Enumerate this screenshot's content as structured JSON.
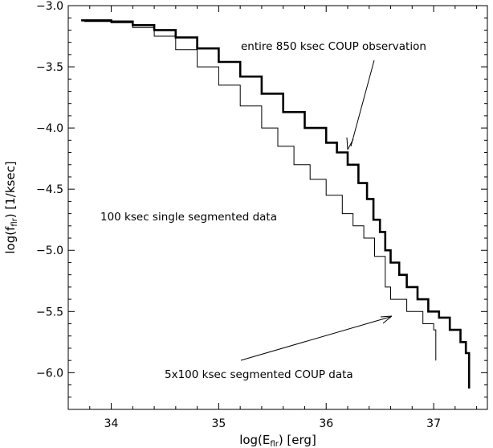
{
  "chart_data": {
    "type": "line",
    "title": "",
    "xlabel": "log(E_flr) [erg]",
    "ylabel": "log(f_flr) [1/ksec]",
    "xlim": [
      33.6,
      37.5
    ],
    "ylim": [
      -6.3,
      -3.0
    ],
    "x_ticks": [
      {
        "value": 34,
        "label": "34"
      },
      {
        "value": 35,
        "label": "35"
      },
      {
        "value": 36,
        "label": "36"
      },
      {
        "value": 37,
        "label": "37"
      }
    ],
    "y_ticks": [
      {
        "value": -3.0,
        "label": "−3.0"
      },
      {
        "value": -3.5,
        "label": "−3.5"
      },
      {
        "value": -4.0,
        "label": "−4.0"
      },
      {
        "value": -4.5,
        "label": "−4.5"
      },
      {
        "value": -5.0,
        "label": "−5.0"
      },
      {
        "value": -5.5,
        "label": "−5.5"
      },
      {
        "value": -6.0,
        "label": "−6.0"
      }
    ],
    "grid": false,
    "legend": "none",
    "series": [
      {
        "name": "entire 850 ksec COUP observation",
        "style": "thick-solid",
        "step": true,
        "points": [
          [
            33.72,
            -3.12
          ],
          [
            33.85,
            -3.12
          ],
          [
            34.0,
            -3.13
          ],
          [
            34.2,
            -3.16
          ],
          [
            34.4,
            -3.2
          ],
          [
            34.6,
            -3.26
          ],
          [
            34.8,
            -3.35
          ],
          [
            35.0,
            -3.46
          ],
          [
            35.2,
            -3.58
          ],
          [
            35.4,
            -3.72
          ],
          [
            35.6,
            -3.87
          ],
          [
            35.8,
            -4.0
          ],
          [
            36.0,
            -4.12
          ],
          [
            36.1,
            -4.2
          ],
          [
            36.2,
            -4.3
          ],
          [
            36.3,
            -4.45
          ],
          [
            36.38,
            -4.58
          ],
          [
            36.44,
            -4.75
          ],
          [
            36.5,
            -4.85
          ],
          [
            36.55,
            -5.0
          ],
          [
            36.6,
            -5.1
          ],
          [
            36.68,
            -5.2
          ],
          [
            36.75,
            -5.3
          ],
          [
            36.85,
            -5.4
          ],
          [
            36.95,
            -5.5
          ],
          [
            37.05,
            -5.55
          ],
          [
            37.15,
            -5.65
          ],
          [
            37.25,
            -5.75
          ],
          [
            37.3,
            -5.84
          ],
          [
            37.33,
            -5.9
          ],
          [
            37.33,
            -6.13
          ]
        ]
      },
      {
        "name": "5x100 ksec segmented COUP data",
        "style": "thin-solid",
        "step": true,
        "points": [
          [
            33.75,
            -3.13
          ],
          [
            34.0,
            -3.14
          ],
          [
            34.2,
            -3.18
          ],
          [
            34.4,
            -3.25
          ],
          [
            34.6,
            -3.36
          ],
          [
            34.8,
            -3.5
          ],
          [
            35.0,
            -3.65
          ],
          [
            35.2,
            -3.82
          ],
          [
            35.4,
            -4.0
          ],
          [
            35.55,
            -4.15
          ],
          [
            35.7,
            -4.3
          ],
          [
            35.85,
            -4.42
          ],
          [
            36.0,
            -4.55
          ],
          [
            36.15,
            -4.7
          ],
          [
            36.25,
            -4.8
          ],
          [
            36.35,
            -4.9
          ],
          [
            36.45,
            -5.05
          ],
          [
            36.55,
            -5.3
          ],
          [
            36.6,
            -5.4
          ],
          [
            36.75,
            -5.5
          ],
          [
            36.9,
            -5.6
          ],
          [
            37.0,
            -5.65
          ],
          [
            37.02,
            -5.9
          ]
        ]
      }
    ],
    "annotations": [
      {
        "text": "entire 850 ksec COUP observation"
      },
      {
        "text": "100 ksec single segmented data"
      },
      {
        "text": "5x100 ksec segmented COUP data"
      }
    ]
  }
}
